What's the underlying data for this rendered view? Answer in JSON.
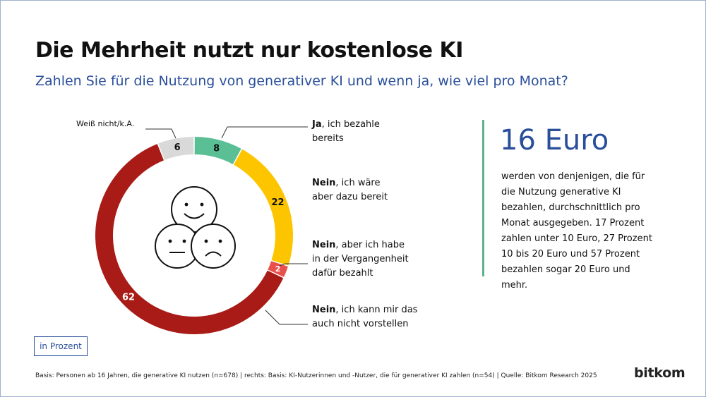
{
  "title": "Die Mehrheit nutzt nur kostenlose KI",
  "subtitle": "Zahlen Sie für die Nutzung von generativer KI und wenn ja, wie viel pro Monat?",
  "chart_data": {
    "type": "pie",
    "variant": "donut",
    "unit": "in Prozent",
    "slices": [
      {
        "label_bold": "Ja",
        "label_rest": ", ich bezahle bereits",
        "value": 8,
        "color": "#5bbf95"
      },
      {
        "label_bold": "Nein",
        "label_rest": ", ich wäre aber dazu bereit",
        "value": 22,
        "color": "#fcc500"
      },
      {
        "label_bold": "Nein",
        "label_rest": ", aber ich habe in der Vergangenheit dafür bezahlt",
        "value": 2,
        "color": "#e9504b"
      },
      {
        "label_bold": "Nein",
        "label_rest": ", ich kann mir das auch nicht vorstellen",
        "value": 62,
        "color": "#a91b17"
      },
      {
        "label_bold": "",
        "label_rest": "Weiß nicht/k.A.",
        "value": 6,
        "color": "#d9d9d9"
      }
    ]
  },
  "labels": {
    "ja_bold": "Ja",
    "ja_rest_1": ", ich bezahle",
    "ja_rest_2": "bereits",
    "bereit_bold": "Nein",
    "bereit_rest_1": ", ich wäre",
    "bereit_rest_2": "aber dazu bereit",
    "frueher_bold": "Nein",
    "frueher_rest_1": ", aber ich habe",
    "frueher_rest_2": "in der Vergangenheit",
    "frueher_rest_3": "dafür bezahlt",
    "nie_bold": "Nein",
    "nie_rest_1": ", ich kann mir das",
    "nie_rest_2": "auch nicht vorstellen",
    "weiss": "Weiß nicht/k.A."
  },
  "side": {
    "amount": "16 Euro",
    "text": "werden von denjenigen, die für die Nutzung generative KI bezahlen, durchschnittlich pro Monat ausgegeben. 17 Prozent zahlen unter 10 Euro, 27 Prozent 10 bis 20 Euro und 57 Prozent bezahlen sogar 20 Euro und mehr."
  },
  "unit_box": "in Prozent",
  "footer": "Basis: Personen ab 16 Jahren, die generative KI nutzen (n=678) | rechts: Basis: KI-Nutzerinnen und -Nutzer, die für generativer KI zahlen (n=54) | Quelle: Bitkom Research 2025",
  "logo": "bitkom",
  "colors": {
    "accent": "#2a4f9a",
    "bar": "#5cb38c"
  },
  "icons": [
    "smiley-happy-icon",
    "smiley-neutral-icon",
    "smiley-sad-icon"
  ]
}
